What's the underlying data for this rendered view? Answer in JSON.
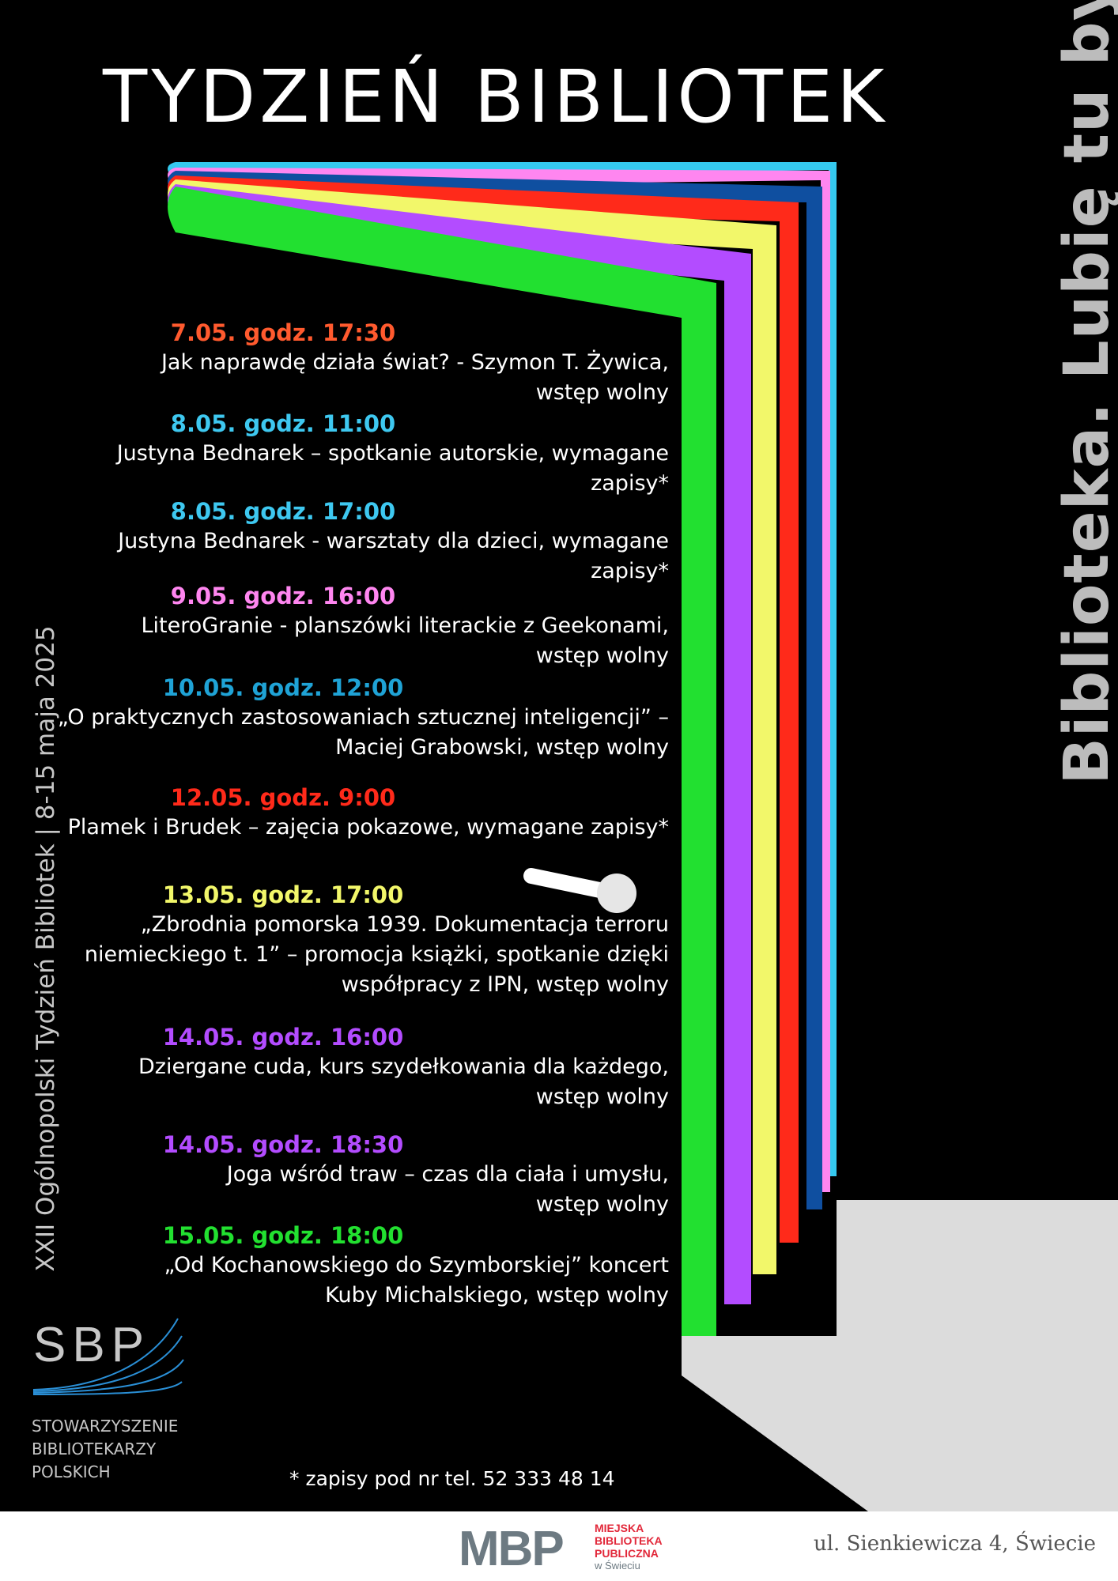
{
  "title": "TYDZIEŃ BIBLIOTEK",
  "slogan": "Biblioteka. Lubię tu być",
  "side_caption": "XXII Ogólnopolski Tydzień Bibliotek | 8-15 maja 2025",
  "events": [
    {
      "when": "7.05. godz. 17:30",
      "desc": "Jak naprawdę działa świat? - Szymon T. Żywica,\nwstęp wolny",
      "color": "#ff5a2e"
    },
    {
      "when": "8.05. godz. 11:00",
      "desc": "Justyna Bednarek – spotkanie autorskie, wymagane zapisy*",
      "color": "#3ec8f0"
    },
    {
      "when": "8.05. godz. 17:00",
      "desc": "Justyna Bednarek - warsztaty dla dzieci, wymagane zapisy*",
      "color": "#3ec8f0"
    },
    {
      "when": "9.05. godz. 16:00",
      "desc": "LiteroGranie - planszówki literackie z Geekonami,\nwstęp wolny",
      "color": "#ff86f0"
    },
    {
      "when": "10.05. godz. 12:00",
      "desc": "„O praktycznych zastosowaniach sztucznej inteligencji” –\nMaciej Grabowski, wstęp wolny",
      "color": "#1fa3d6"
    },
    {
      "when": "12.05. godz. 9:00",
      "desc": "Plamek i Brudek – zajęcia pokazowe, wymagane zapisy*",
      "color": "#ff2a1a"
    },
    {
      "when": "13.05. godz. 17:00",
      "desc": "„Zbrodnia pomorska 1939. Dokumentacja terroru\nniemieckiego t. 1” – promocja książki, spotkanie dzięki\nwspółpracy z IPN, wstęp wolny",
      "color": "#f2f76a"
    },
    {
      "when": "14.05. godz. 16:00",
      "desc": "Dziergane cuda, kurs szydełkowania dla każdego,\nwstęp wolny",
      "color": "#b34cff"
    },
    {
      "when": "14.05. godz. 18:30",
      "desc": "Joga wśród traw – czas dla ciała i umysłu,\nwstęp wolny",
      "color": "#b34cff"
    },
    {
      "when": "15.05. godz. 18:00",
      "desc": "„Od Kochanowskiego do Szymborskiej” koncert\nKuby Michalskiego, wstęp wolny",
      "color": "#22e030"
    }
  ],
  "sbp": {
    "abbr": "SBP",
    "name": "STOWARZYSZENIE\nBIBLIOTEKARZY\nPOLSKICH"
  },
  "footnote": "* zapisy pod nr tel. 52 333 48 14",
  "mbp": {
    "abbr": "MBP",
    "name_lines": [
      "MIEJSKA",
      "BIBLIOTEKA",
      "PUBLICZNA",
      "w Świeciu"
    ]
  },
  "address": "ul. Sienkiewicza 4, Świecie",
  "colors": {
    "stripes": [
      "#35c9ef",
      "#ff86f0",
      "#0f4fa0",
      "#ff2a1a",
      "#f2f76a",
      "#b34cff",
      "#22e030"
    ],
    "floor": "#dcdcdc",
    "sbp_blue": "#2a8fd6",
    "mbp_red": "#e2283a",
    "mbp_gray": "#6d7a82"
  }
}
